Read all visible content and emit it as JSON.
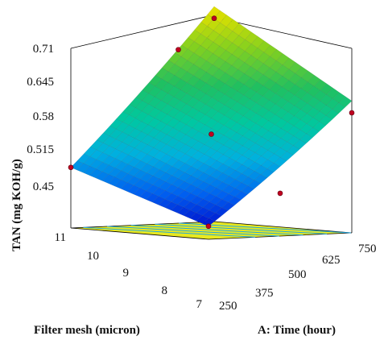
{
  "chart_data": {
    "type": "surface3d",
    "zlabel": "TAN (mg KOH/g)",
    "xlabel": "A: Time (hour)",
    "ylabel": "Filter mesh (micron)",
    "x_ticks": [
      "250",
      "375",
      "500",
      "625",
      "750"
    ],
    "y_ticks": [
      "7",
      "8",
      "9",
      "10",
      "11"
    ],
    "z_ticks": [
      "0.45",
      "0.515",
      "0.58",
      "0.645",
      "0.71"
    ],
    "xlim": [
      250,
      750
    ],
    "ylim": [
      7,
      11
    ],
    "zlim": [
      0.45,
      0.71
    ],
    "surface_corners": [
      {
        "time": 250,
        "mesh": 11,
        "tan": 0.49
      },
      {
        "time": 250,
        "mesh": 7,
        "tan": 0.41
      },
      {
        "time": 750,
        "mesh": 7,
        "tan": 0.59
      },
      {
        "time": 750,
        "mesh": 11,
        "tan": 0.73
      }
    ],
    "design_points": [
      {
        "time": 750,
        "mesh": 11,
        "tan": 0.73
      },
      {
        "time": 625,
        "mesh": 11,
        "tan": 0.68
      },
      {
        "time": 750,
        "mesh": 7,
        "tan": 0.59
      },
      {
        "time": 500,
        "mesh": 9,
        "tan": 0.55
      },
      {
        "time": 250,
        "mesh": 11,
        "tan": 0.49
      },
      {
        "time": 250,
        "mesh": 7,
        "tan": 0.41
      },
      {
        "time": 500,
        "mesh": 7,
        "tan": 0.46
      }
    ],
    "surface_colormap": [
      "#0000c8",
      "#0060f0",
      "#00b0e0",
      "#00c8a0",
      "#20c060",
      "#80d020",
      "#e0e000"
    ],
    "floor_color": "#e8e820",
    "contour_color": "#20a8e0"
  }
}
